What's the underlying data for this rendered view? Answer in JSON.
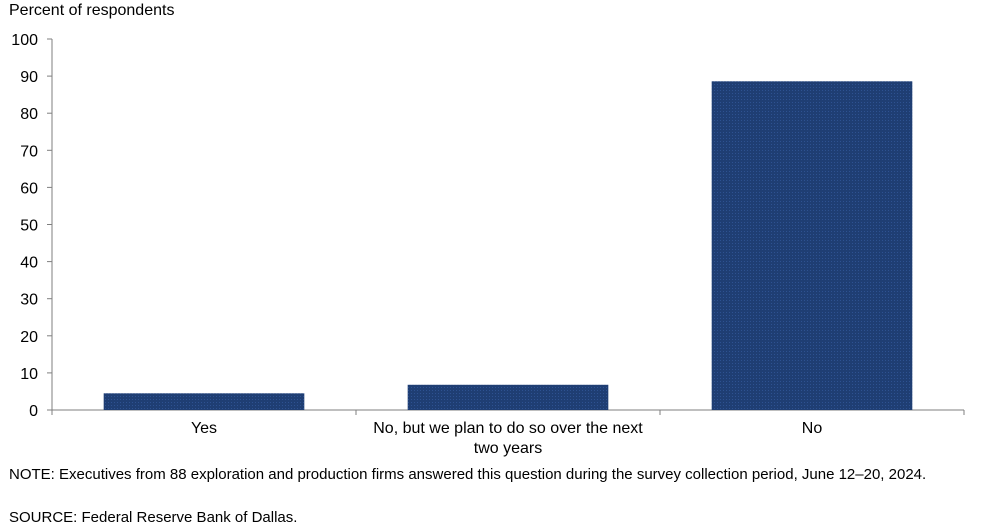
{
  "chart_data": {
    "type": "bar",
    "ylabel": "Percent of respondents",
    "xlabel": "",
    "ylim": [
      0,
      100
    ],
    "yticks": [
      0,
      10,
      20,
      30,
      40,
      50,
      60,
      70,
      80,
      90,
      100
    ],
    "categories": [
      [
        "Yes"
      ],
      [
        "No, but we plan to do so over the next",
        "two years"
      ],
      [
        "No"
      ]
    ],
    "values": [
      4.5,
      6.8,
      88.6
    ],
    "bar_color": "#1f3e73",
    "grid": false,
    "legend": "none"
  },
  "note": "NOTE: Executives from 88 exploration and production firms answered this question during the survey collection period, June 12–20, 2024.",
  "source": "SOURCE: Federal Reserve Bank of Dallas."
}
